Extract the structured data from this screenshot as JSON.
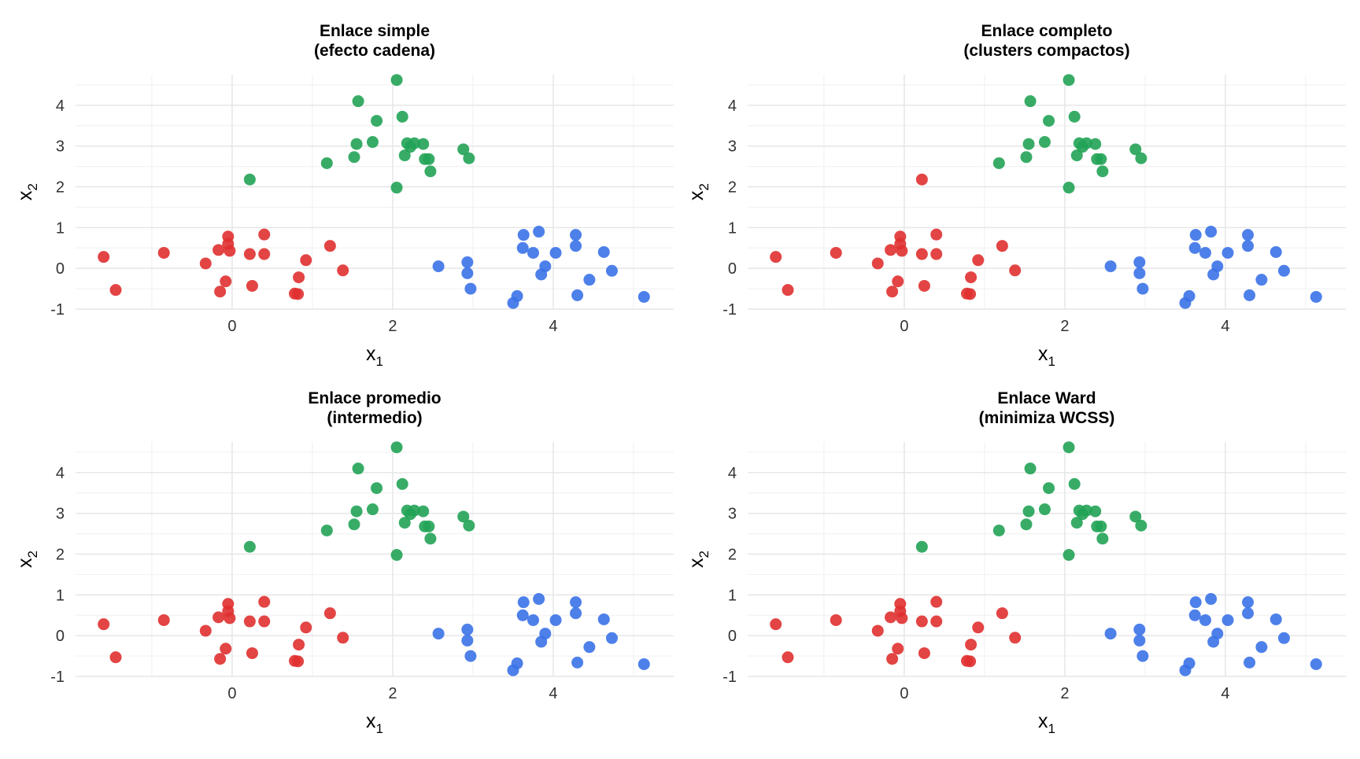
{
  "colors": {
    "cluster_red": "#E03030",
    "cluster_green": "#22A356",
    "cluster_blue": "#3B72E8",
    "grid_major": "#E6E6E6",
    "grid_minor": "#F2F2F2",
    "text": "#333333",
    "title": "#000000"
  },
  "chart_data": [
    {
      "type": "scatter",
      "title": "Enlace simple",
      "subtitle": "(efecto cadena)",
      "xlabel": "x",
      "xlabel_sub": "1",
      "ylabel": "x",
      "ylabel_sub": "2",
      "xlim": [
        -1.95,
        5.5
      ],
      "ylim": [
        -1.0,
        4.75
      ],
      "xticks": [
        0,
        2,
        4
      ],
      "yticks": [
        -1,
        0,
        1,
        2,
        3,
        4
      ],
      "xtick_labels": [
        "0",
        "2",
        "4"
      ],
      "ytick_labels": [
        "-1",
        "0",
        "1",
        "2",
        "3",
        "4"
      ],
      "grid": true,
      "legend": "none",
      "points": {
        "red": [
          [
            -1.6,
            0.28
          ],
          [
            -1.45,
            -0.53
          ],
          [
            -0.85,
            0.38
          ],
          [
            -0.33,
            0.12
          ],
          [
            -0.17,
            0.45
          ],
          [
            -0.05,
            0.78
          ],
          [
            -0.05,
            0.6
          ],
          [
            -0.03,
            0.43
          ],
          [
            -0.08,
            -0.32
          ],
          [
            -0.15,
            -0.57
          ],
          [
            0.22,
            0.35
          ],
          [
            0.25,
            -0.43
          ],
          [
            0.4,
            0.83
          ],
          [
            0.4,
            0.35
          ],
          [
            0.78,
            -0.62
          ],
          [
            0.82,
            -0.63
          ],
          [
            0.83,
            -0.22
          ],
          [
            0.92,
            0.2
          ],
          [
            1.22,
            0.55
          ],
          [
            1.38,
            -0.05
          ]
        ],
        "green": [
          [
            0.22,
            2.18
          ],
          [
            1.18,
            2.58
          ],
          [
            1.52,
            2.73
          ],
          [
            1.55,
            3.05
          ],
          [
            1.57,
            4.1
          ],
          [
            1.75,
            3.1
          ],
          [
            1.8,
            3.62
          ],
          [
            2.05,
            4.62
          ],
          [
            2.05,
            1.98
          ],
          [
            2.12,
            3.72
          ],
          [
            2.15,
            2.77
          ],
          [
            2.18,
            3.07
          ],
          [
            2.22,
            2.98
          ],
          [
            2.27,
            3.07
          ],
          [
            2.38,
            3.05
          ],
          [
            2.4,
            2.68
          ],
          [
            2.45,
            2.68
          ],
          [
            2.47,
            2.38
          ],
          [
            2.88,
            2.92
          ],
          [
            2.95,
            2.7
          ]
        ],
        "blue": [
          [
            2.57,
            0.05
          ],
          [
            2.93,
            0.15
          ],
          [
            2.93,
            -0.12
          ],
          [
            2.97,
            -0.5
          ],
          [
            3.5,
            -0.85
          ],
          [
            3.55,
            -0.68
          ],
          [
            3.62,
            0.5
          ],
          [
            3.63,
            0.82
          ],
          [
            3.75,
            0.38
          ],
          [
            3.82,
            0.9
          ],
          [
            3.85,
            -0.15
          ],
          [
            3.9,
            0.05
          ],
          [
            4.03,
            0.38
          ],
          [
            4.28,
            0.82
          ],
          [
            4.28,
            0.55
          ],
          [
            4.3,
            -0.66
          ],
          [
            4.45,
            -0.28
          ],
          [
            4.63,
            0.4
          ],
          [
            4.73,
            -0.06
          ],
          [
            5.13,
            -0.7
          ]
        ]
      }
    },
    {
      "type": "scatter",
      "title": "Enlace completo",
      "subtitle": "(clusters compactos)",
      "xlabel": "x",
      "xlabel_sub": "1",
      "ylabel": "x",
      "ylabel_sub": "2",
      "xlim": [
        -1.95,
        5.5
      ],
      "ylim": [
        -1.0,
        4.75
      ],
      "xticks": [
        0,
        2,
        4
      ],
      "yticks": [
        -1,
        0,
        1,
        2,
        3,
        4
      ],
      "xtick_labels": [
        "0",
        "2",
        "4"
      ],
      "ytick_labels": [
        "-1",
        "0",
        "1",
        "2",
        "3",
        "4"
      ],
      "grid": true,
      "legend": "none",
      "points": {
        "red": [
          [
            -1.6,
            0.28
          ],
          [
            -1.45,
            -0.53
          ],
          [
            -0.85,
            0.38
          ],
          [
            -0.33,
            0.12
          ],
          [
            -0.17,
            0.45
          ],
          [
            -0.05,
            0.78
          ],
          [
            -0.05,
            0.6
          ],
          [
            -0.03,
            0.43
          ],
          [
            -0.08,
            -0.32
          ],
          [
            -0.15,
            -0.57
          ],
          [
            0.22,
            2.18
          ],
          [
            0.22,
            0.35
          ],
          [
            0.25,
            -0.43
          ],
          [
            0.4,
            0.83
          ],
          [
            0.4,
            0.35
          ],
          [
            0.78,
            -0.62
          ],
          [
            0.82,
            -0.63
          ],
          [
            0.83,
            -0.22
          ],
          [
            0.92,
            0.2
          ],
          [
            1.22,
            0.55
          ],
          [
            1.38,
            -0.05
          ]
        ],
        "green": [
          [
            1.18,
            2.58
          ],
          [
            1.52,
            2.73
          ],
          [
            1.55,
            3.05
          ],
          [
            1.57,
            4.1
          ],
          [
            1.75,
            3.1
          ],
          [
            1.8,
            3.62
          ],
          [
            2.05,
            4.62
          ],
          [
            2.05,
            1.98
          ],
          [
            2.12,
            3.72
          ],
          [
            2.15,
            2.77
          ],
          [
            2.18,
            3.07
          ],
          [
            2.22,
            2.98
          ],
          [
            2.27,
            3.07
          ],
          [
            2.38,
            3.05
          ],
          [
            2.4,
            2.68
          ],
          [
            2.45,
            2.68
          ],
          [
            2.47,
            2.38
          ],
          [
            2.88,
            2.92
          ],
          [
            2.95,
            2.7
          ]
        ],
        "blue": [
          [
            2.57,
            0.05
          ],
          [
            2.93,
            0.15
          ],
          [
            2.93,
            -0.12
          ],
          [
            2.97,
            -0.5
          ],
          [
            3.5,
            -0.85
          ],
          [
            3.55,
            -0.68
          ],
          [
            3.62,
            0.5
          ],
          [
            3.63,
            0.82
          ],
          [
            3.75,
            0.38
          ],
          [
            3.82,
            0.9
          ],
          [
            3.85,
            -0.15
          ],
          [
            3.9,
            0.05
          ],
          [
            4.03,
            0.38
          ],
          [
            4.28,
            0.82
          ],
          [
            4.28,
            0.55
          ],
          [
            4.3,
            -0.66
          ],
          [
            4.45,
            -0.28
          ],
          [
            4.63,
            0.4
          ],
          [
            4.73,
            -0.06
          ],
          [
            5.13,
            -0.7
          ]
        ]
      }
    },
    {
      "type": "scatter",
      "title": "Enlace promedio",
      "subtitle": "(intermedio)",
      "xlabel": "x",
      "xlabel_sub": "1",
      "ylabel": "x",
      "ylabel_sub": "2",
      "xlim": [
        -1.95,
        5.5
      ],
      "ylim": [
        -1.0,
        4.75
      ],
      "xticks": [
        0,
        2,
        4
      ],
      "yticks": [
        -1,
        0,
        1,
        2,
        3,
        4
      ],
      "xtick_labels": [
        "0",
        "2",
        "4"
      ],
      "ytick_labels": [
        "-1",
        "0",
        "1",
        "2",
        "3",
        "4"
      ],
      "grid": true,
      "legend": "none",
      "points": {
        "red": [
          [
            -1.6,
            0.28
          ],
          [
            -1.45,
            -0.53
          ],
          [
            -0.85,
            0.38
          ],
          [
            -0.33,
            0.12
          ],
          [
            -0.17,
            0.45
          ],
          [
            -0.05,
            0.78
          ],
          [
            -0.05,
            0.6
          ],
          [
            -0.03,
            0.43
          ],
          [
            -0.08,
            -0.32
          ],
          [
            -0.15,
            -0.57
          ],
          [
            0.22,
            0.35
          ],
          [
            0.25,
            -0.43
          ],
          [
            0.4,
            0.83
          ],
          [
            0.4,
            0.35
          ],
          [
            0.78,
            -0.62
          ],
          [
            0.82,
            -0.63
          ],
          [
            0.83,
            -0.22
          ],
          [
            0.92,
            0.2
          ],
          [
            1.22,
            0.55
          ],
          [
            1.38,
            -0.05
          ]
        ],
        "green": [
          [
            0.22,
            2.18
          ],
          [
            1.18,
            2.58
          ],
          [
            1.52,
            2.73
          ],
          [
            1.55,
            3.05
          ],
          [
            1.57,
            4.1
          ],
          [
            1.75,
            3.1
          ],
          [
            1.8,
            3.62
          ],
          [
            2.05,
            4.62
          ],
          [
            2.05,
            1.98
          ],
          [
            2.12,
            3.72
          ],
          [
            2.15,
            2.77
          ],
          [
            2.18,
            3.07
          ],
          [
            2.22,
            2.98
          ],
          [
            2.27,
            3.07
          ],
          [
            2.38,
            3.05
          ],
          [
            2.4,
            2.68
          ],
          [
            2.45,
            2.68
          ],
          [
            2.47,
            2.38
          ],
          [
            2.88,
            2.92
          ],
          [
            2.95,
            2.7
          ]
        ],
        "blue": [
          [
            2.57,
            0.05
          ],
          [
            2.93,
            0.15
          ],
          [
            2.93,
            -0.12
          ],
          [
            2.97,
            -0.5
          ],
          [
            3.5,
            -0.85
          ],
          [
            3.55,
            -0.68
          ],
          [
            3.62,
            0.5
          ],
          [
            3.63,
            0.82
          ],
          [
            3.75,
            0.38
          ],
          [
            3.82,
            0.9
          ],
          [
            3.85,
            -0.15
          ],
          [
            3.9,
            0.05
          ],
          [
            4.03,
            0.38
          ],
          [
            4.28,
            0.82
          ],
          [
            4.28,
            0.55
          ],
          [
            4.3,
            -0.66
          ],
          [
            4.45,
            -0.28
          ],
          [
            4.63,
            0.4
          ],
          [
            4.73,
            -0.06
          ],
          [
            5.13,
            -0.7
          ]
        ]
      }
    },
    {
      "type": "scatter",
      "title": "Enlace Ward",
      "subtitle": "(minimiza WCSS)",
      "xlabel": "x",
      "xlabel_sub": "1",
      "ylabel": "x",
      "ylabel_sub": "2",
      "xlim": [
        -1.95,
        5.5
      ],
      "ylim": [
        -1.0,
        4.75
      ],
      "xticks": [
        0,
        2,
        4
      ],
      "yticks": [
        -1,
        0,
        1,
        2,
        3,
        4
      ],
      "xtick_labels": [
        "0",
        "2",
        "4"
      ],
      "ytick_labels": [
        "-1",
        "0",
        "1",
        "2",
        "3",
        "4"
      ],
      "grid": true,
      "legend": "none",
      "points": {
        "red": [
          [
            -1.6,
            0.28
          ],
          [
            -1.45,
            -0.53
          ],
          [
            -0.85,
            0.38
          ],
          [
            -0.33,
            0.12
          ],
          [
            -0.17,
            0.45
          ],
          [
            -0.05,
            0.78
          ],
          [
            -0.05,
            0.6
          ],
          [
            -0.03,
            0.43
          ],
          [
            -0.08,
            -0.32
          ],
          [
            -0.15,
            -0.57
          ],
          [
            0.22,
            0.35
          ],
          [
            0.25,
            -0.43
          ],
          [
            0.4,
            0.83
          ],
          [
            0.4,
            0.35
          ],
          [
            0.78,
            -0.62
          ],
          [
            0.82,
            -0.63
          ],
          [
            0.83,
            -0.22
          ],
          [
            0.92,
            0.2
          ],
          [
            1.22,
            0.55
          ],
          [
            1.38,
            -0.05
          ]
        ],
        "green": [
          [
            0.22,
            2.18
          ],
          [
            1.18,
            2.58
          ],
          [
            1.52,
            2.73
          ],
          [
            1.55,
            3.05
          ],
          [
            1.57,
            4.1
          ],
          [
            1.75,
            3.1
          ],
          [
            1.8,
            3.62
          ],
          [
            2.05,
            4.62
          ],
          [
            2.05,
            1.98
          ],
          [
            2.12,
            3.72
          ],
          [
            2.15,
            2.77
          ],
          [
            2.18,
            3.07
          ],
          [
            2.22,
            2.98
          ],
          [
            2.27,
            3.07
          ],
          [
            2.38,
            3.05
          ],
          [
            2.4,
            2.68
          ],
          [
            2.45,
            2.68
          ],
          [
            2.47,
            2.38
          ],
          [
            2.88,
            2.92
          ],
          [
            2.95,
            2.7
          ]
        ],
        "blue": [
          [
            2.57,
            0.05
          ],
          [
            2.93,
            0.15
          ],
          [
            2.93,
            -0.12
          ],
          [
            2.97,
            -0.5
          ],
          [
            3.5,
            -0.85
          ],
          [
            3.55,
            -0.68
          ],
          [
            3.62,
            0.5
          ],
          [
            3.63,
            0.82
          ],
          [
            3.75,
            0.38
          ],
          [
            3.82,
            0.9
          ],
          [
            3.85,
            -0.15
          ],
          [
            3.9,
            0.05
          ],
          [
            4.03,
            0.38
          ],
          [
            4.28,
            0.82
          ],
          [
            4.28,
            0.55
          ],
          [
            4.3,
            -0.66
          ],
          [
            4.45,
            -0.28
          ],
          [
            4.63,
            0.4
          ],
          [
            4.73,
            -0.06
          ],
          [
            5.13,
            -0.7
          ]
        ]
      }
    }
  ]
}
